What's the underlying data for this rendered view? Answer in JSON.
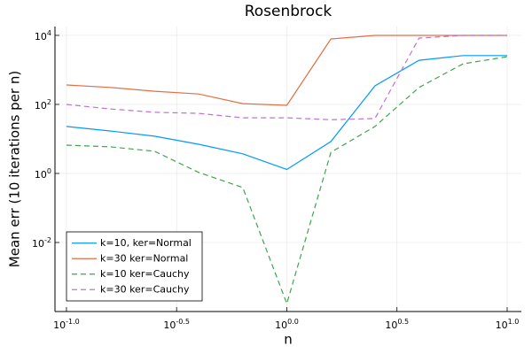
{
  "chart_data": {
    "type": "line",
    "title": "Rosenbrock",
    "x_label": "n",
    "y_label": "Mean err (10 iterations per n)",
    "xscale": "log",
    "yscale": "log",
    "grid": true,
    "legend_position": "lower left",
    "x": [
      0.1,
      0.158,
      0.251,
      0.398,
      0.631,
      1,
      1.585,
      2.512,
      3.981,
      6.31,
      10
    ],
    "series": [
      {
        "name": "k=10, ker=Normal",
        "color": "#009afa",
        "style": "solid",
        "values": [
          23,
          17,
          12,
          7,
          3.7,
          1.3,
          8.4,
          345,
          1900,
          2600,
          2600
        ]
      },
      {
        "name": "k=30 ker=Normal",
        "color": "#e26f46",
        "style": "solid",
        "values": [
          365,
          310,
          240,
          200,
          105,
          94,
          7900,
          10000,
          10000,
          10000,
          10000
        ]
      },
      {
        "name": "k=10 ker=Cauchy",
        "color": "#3ea44e",
        "style": "dashed",
        "values": [
          6.6,
          5.9,
          4.4,
          1.07,
          0.39,
          0.00017,
          4.1,
          23,
          310,
          1500,
          2400
        ]
      },
      {
        "name": "k=30 ker=Cauchy",
        "color": "#c271d2",
        "style": "dashed",
        "values": [
          100,
          74,
          59,
          55,
          41,
          41,
          36,
          39,
          8300,
          10000,
          10000
        ]
      }
    ],
    "xlim": [
      0.0887,
      11.6
    ],
    "ylim": [
      0.0001,
      18000
    ],
    "xticks": [
      {
        "value": 0.1,
        "label": "10",
        "exponent": "-1.0"
      },
      {
        "value": 0.3162,
        "label": "10",
        "exponent": "-0.5"
      },
      {
        "value": 1,
        "label": "10",
        "exponent": "0.0"
      },
      {
        "value": 3.162,
        "label": "10",
        "exponent": "0.5"
      },
      {
        "value": 10,
        "label": "10",
        "exponent": "1.0"
      }
    ],
    "yticks": [
      {
        "value": 0.01,
        "label": "10",
        "exponent": "-2"
      },
      {
        "value": 1,
        "label": "10",
        "exponent": "0"
      },
      {
        "value": 100,
        "label": "10",
        "exponent": "2"
      },
      {
        "value": 10000,
        "label": "10",
        "exponent": "4"
      }
    ]
  }
}
